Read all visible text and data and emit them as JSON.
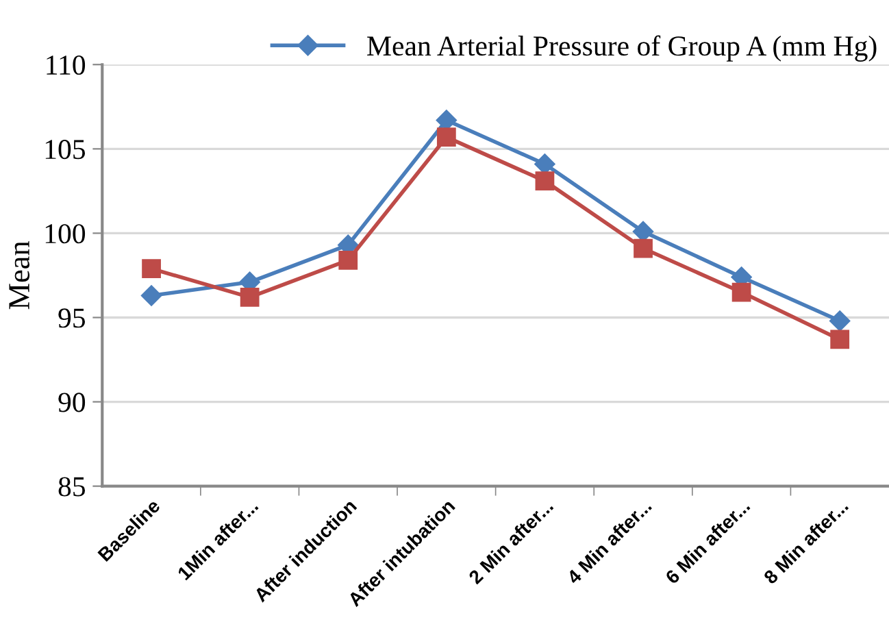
{
  "chart_data": {
    "type": "line",
    "ylabel": "Mean",
    "categories": [
      "Baseline",
      "1Min after...",
      "After induction",
      "After intubation",
      "2 Min after...",
      "4 Min after...",
      "6 Min after...",
      "8 Min after..."
    ],
    "series": [
      {
        "name": "Mean Arterial Pressure of Group A (mm Hg)",
        "color": "#4a7ebb",
        "marker": "diamond",
        "values": [
          96.3,
          97.1,
          99.3,
          106.7,
          104.1,
          100.1,
          97.4,
          94.8
        ]
      },
      {
        "color": "#be4b48",
        "marker": "square",
        "values": [
          97.9,
          96.2,
          98.4,
          105.7,
          103.1,
          99.1,
          96.5,
          93.7
        ]
      }
    ],
    "ylim": [
      85,
      110
    ],
    "yticks": [
      85,
      90,
      95,
      100,
      105,
      110
    ],
    "grid": "y",
    "legend": "top right"
  }
}
